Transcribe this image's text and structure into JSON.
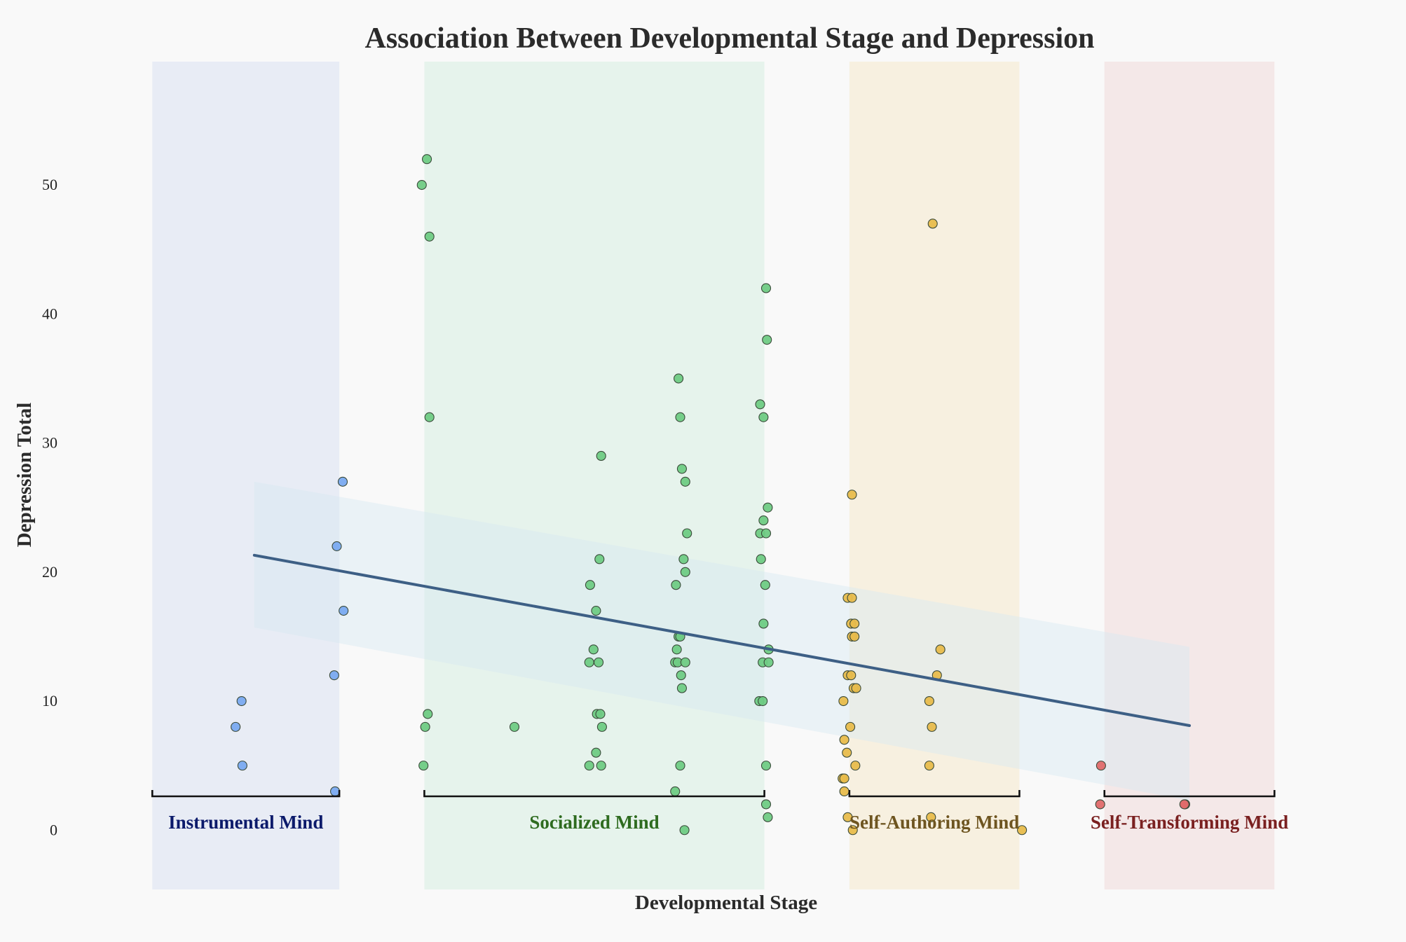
{
  "chart_data": {
    "type": "scatter",
    "title": "Association Between Developmental Stage and Depression",
    "xlabel": "Developmental Stage",
    "ylabel": "Depression Total",
    "ylim": [
      -4.6,
      60.1
    ],
    "xlim": [
      1.0,
      16.5
    ],
    "yticks": [
      0,
      10,
      20,
      30,
      40,
      50
    ],
    "grid": false,
    "stages": [
      {
        "name": "Instrumental Mind",
        "range": [
          2.0,
          4.2
        ],
        "band_color": "#e8ecf5",
        "label_color": "#0b1a6b"
      },
      {
        "name": "Socialized Mind",
        "range": [
          5.2,
          9.2
        ],
        "band_color": "#e6f3ec",
        "label_color": "#2e6b1f"
      },
      {
        "name": "Self-Authoring Mind",
        "range": [
          10.2,
          12.2
        ],
        "band_color": "#f7f0e0",
        "label_color": "#6e5520"
      },
      {
        "name": "Self-Transforming Mind",
        "range": [
          13.2,
          15.2
        ],
        "band_color": "#f4e8e8",
        "label_color": "#7a2020"
      }
    ],
    "series": [
      {
        "stage": "Instrumental Mind",
        "color": "#7aaaf0",
        "points": [
          [
            3.05,
            10
          ],
          [
            2.98,
            8
          ],
          [
            3.06,
            5
          ],
          [
            4.17,
            22
          ],
          [
            4.24,
            27
          ],
          [
            4.25,
            17
          ],
          [
            4.14,
            12
          ],
          [
            4.15,
            3
          ]
        ]
      },
      {
        "stage": "Socialized Mind",
        "color": "#6fcb84",
        "points": [
          [
            5.23,
            52
          ],
          [
            5.17,
            50
          ],
          [
            5.26,
            46
          ],
          [
            5.26,
            32
          ],
          [
            5.24,
            9
          ],
          [
            5.21,
            8
          ],
          [
            5.19,
            5
          ],
          [
            6.26,
            8
          ],
          [
            7.28,
            29
          ],
          [
            7.26,
            21
          ],
          [
            7.15,
            19
          ],
          [
            7.22,
            17
          ],
          [
            7.19,
            14
          ],
          [
            7.14,
            13
          ],
          [
            7.25,
            13
          ],
          [
            7.23,
            9
          ],
          [
            7.27,
            9
          ],
          [
            7.29,
            8
          ],
          [
            7.22,
            6
          ],
          [
            7.14,
            5
          ],
          [
            7.28,
            5
          ],
          [
            8.19,
            35
          ],
          [
            8.21,
            32
          ],
          [
            8.23,
            28
          ],
          [
            8.27,
            27
          ],
          [
            8.29,
            23
          ],
          [
            8.25,
            21
          ],
          [
            8.27,
            20
          ],
          [
            8.16,
            19
          ],
          [
            8.19,
            15
          ],
          [
            8.21,
            15
          ],
          [
            8.17,
            14
          ],
          [
            8.15,
            13
          ],
          [
            8.18,
            13
          ],
          [
            8.27,
            13
          ],
          [
            8.22,
            12
          ],
          [
            8.23,
            11
          ],
          [
            8.21,
            5
          ],
          [
            8.15,
            3
          ],
          [
            8.26,
            0
          ],
          [
            9.22,
            42
          ],
          [
            9.23,
            38
          ],
          [
            9.15,
            33
          ],
          [
            9.19,
            32
          ],
          [
            9.24,
            25
          ],
          [
            9.19,
            24
          ],
          [
            9.15,
            23
          ],
          [
            9.22,
            23
          ],
          [
            9.16,
            21
          ],
          [
            9.21,
            19
          ],
          [
            9.19,
            16
          ],
          [
            9.25,
            14
          ],
          [
            9.18,
            13
          ],
          [
            9.25,
            13
          ],
          [
            9.14,
            10
          ],
          [
            9.18,
            10
          ],
          [
            9.22,
            5
          ],
          [
            9.22,
            2
          ],
          [
            9.24,
            1
          ]
        ]
      },
      {
        "stage": "Self-Authoring Mind",
        "color": "#e8bc4c",
        "points": [
          [
            10.23,
            26
          ],
          [
            10.18,
            18
          ],
          [
            10.23,
            18
          ],
          [
            10.22,
            16
          ],
          [
            10.26,
            16
          ],
          [
            10.23,
            15
          ],
          [
            10.26,
            15
          ],
          [
            10.18,
            12
          ],
          [
            10.22,
            12
          ],
          [
            10.25,
            11
          ],
          [
            10.28,
            11
          ],
          [
            10.13,
            10
          ],
          [
            10.21,
            8
          ],
          [
            10.14,
            7
          ],
          [
            10.17,
            6
          ],
          [
            10.27,
            5
          ],
          [
            10.12,
            4
          ],
          [
            10.14,
            4
          ],
          [
            10.14,
            3
          ],
          [
            10.18,
            1
          ],
          [
            10.24,
            0
          ],
          [
            11.18,
            47
          ],
          [
            11.27,
            14
          ],
          [
            11.23,
            12
          ],
          [
            11.14,
            10
          ],
          [
            11.17,
            8
          ],
          [
            11.14,
            5
          ],
          [
            11.16,
            1
          ],
          [
            12.23,
            0
          ]
        ]
      },
      {
        "stage": "Self-Transforming Mind",
        "color": "#e06a6a",
        "points": [
          [
            13.16,
            5
          ],
          [
            13.15,
            2
          ],
          [
            14.15,
            2
          ],
          [
            14.14,
            2
          ]
        ]
      }
    ],
    "regression": {
      "x": [
        3.2,
        14.2
      ],
      "y": [
        21.3,
        8.1
      ],
      "ci_upper": [
        27,
        14.2
      ],
      "ci_lower": [
        15.7,
        2.3
      ],
      "color": "#3d5f85",
      "ci_color": "#d6e8f2"
    }
  }
}
